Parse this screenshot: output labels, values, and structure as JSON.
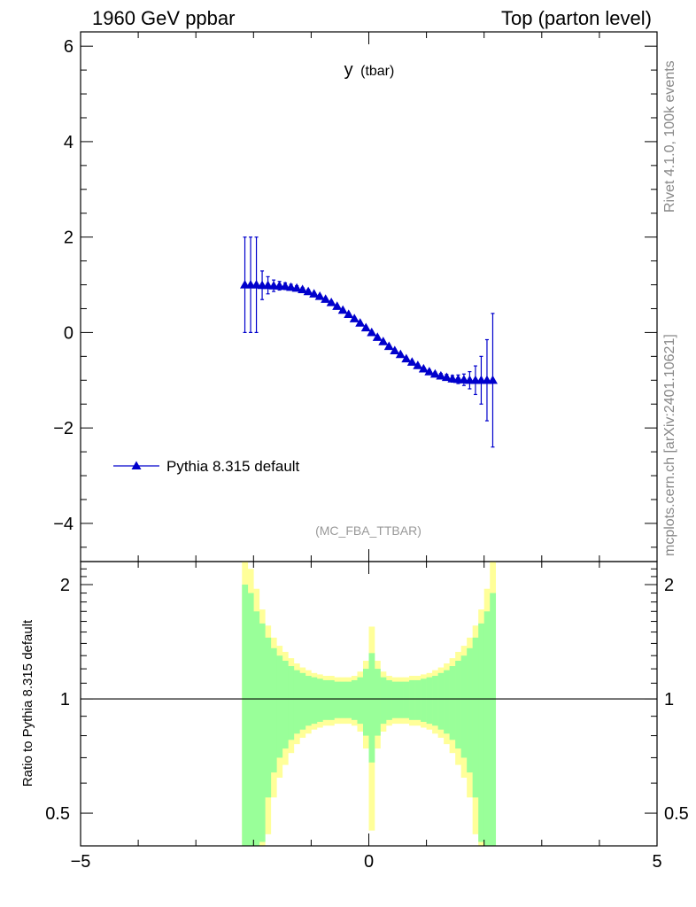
{
  "header": {
    "left": "1960 GeV ppbar",
    "right": "Top (parton level)"
  },
  "side_labels": {
    "rivet": "Rivet 4.1.0,  100k events",
    "mcplots": "mcplots.cern.ch [arXiv:2401.10621]"
  },
  "analysis_tag": "(MC_FBA_TTBAR)",
  "colors": {
    "series": "#0000cc",
    "band_stat": "#99ff99",
    "band_total": "#ffff99",
    "frame": "#000000",
    "side_text": "#888888"
  },
  "chart_data": [
    {
      "type": "scatter",
      "title_main": "y",
      "title_sub": "(tbar)",
      "xlim": [
        -5,
        5
      ],
      "ylim": [
        -4.8,
        6.3
      ],
      "x_ticks": [
        -5,
        0,
        5
      ],
      "x_tick_labels": [
        "−5",
        "0",
        "5"
      ],
      "y_ticks": [
        -4,
        -2,
        0,
        2,
        4,
        6
      ],
      "y_tick_labels": [
        "−4",
        "−2",
        "0",
        "2",
        "4",
        "6"
      ],
      "legend": {
        "label": "Pythia 8.315 default",
        "position": "bottom-left"
      },
      "series": [
        {
          "name": "Pythia 8.315 default",
          "marker": "triangle-up",
          "x": [
            -2.15,
            -2.05,
            -1.95,
            -1.85,
            -1.75,
            -1.65,
            -1.55,
            -1.45,
            -1.35,
            -1.25,
            -1.15,
            -1.05,
            -0.95,
            -0.85,
            -0.75,
            -0.65,
            -0.55,
            -0.45,
            -0.35,
            -0.25,
            -0.15,
            -0.05,
            0.05,
            0.15,
            0.25,
            0.35,
            0.45,
            0.55,
            0.65,
            0.75,
            0.85,
            0.95,
            1.05,
            1.15,
            1.25,
            1.35,
            1.45,
            1.55,
            1.65,
            1.75,
            1.85,
            1.95,
            2.05,
            2.15
          ],
          "y": [
            1.0,
            1.0,
            1.0,
            0.99,
            0.99,
            0.98,
            0.98,
            0.97,
            0.95,
            0.93,
            0.9,
            0.86,
            0.81,
            0.76,
            0.7,
            0.63,
            0.55,
            0.47,
            0.38,
            0.29,
            0.2,
            0.1,
            0.0,
            -0.1,
            -0.19,
            -0.29,
            -0.38,
            -0.46,
            -0.55,
            -0.62,
            -0.69,
            -0.76,
            -0.82,
            -0.87,
            -0.91,
            -0.94,
            -0.97,
            -0.98,
            -0.99,
            -1.0,
            -1.0,
            -1.0,
            -1.0,
            -1.0
          ],
          "err": [
            1.0,
            1.0,
            1.0,
            0.3,
            0.18,
            0.12,
            0.09,
            0.07,
            0.06,
            0.05,
            0.04,
            0.04,
            0.03,
            0.03,
            0.03,
            0.03,
            0.03,
            0.03,
            0.03,
            0.03,
            0.03,
            0.03,
            0.03,
            0.03,
            0.03,
            0.03,
            0.03,
            0.03,
            0.03,
            0.03,
            0.03,
            0.03,
            0.04,
            0.04,
            0.05,
            0.06,
            0.07,
            0.09,
            0.12,
            0.18,
            0.3,
            0.5,
            0.85,
            1.4
          ]
        }
      ]
    },
    {
      "type": "area",
      "ylabel": "Ratio to Pythia 8.315 default",
      "xlim": [
        -5,
        5
      ],
      "ylim": [
        0.41,
        2.3
      ],
      "yscale": "log",
      "x_ticks": [
        -5,
        0,
        5
      ],
      "x_tick_labels": [
        "−5",
        "0",
        "5"
      ],
      "y_ticks": [
        0.5,
        1,
        2
      ],
      "y_tick_labels": [
        "0.5",
        "1",
        "2"
      ],
      "reference_line": 1,
      "bands": {
        "x_edges": [
          -2.2,
          -2.1,
          -2.0,
          -1.9,
          -1.8,
          -1.7,
          -1.6,
          -1.5,
          -1.4,
          -1.3,
          -1.2,
          -1.1,
          -1.0,
          -0.9,
          -0.8,
          -0.7,
          -0.6,
          -0.5,
          -0.4,
          -0.3,
          -0.2,
          -0.1,
          0.0,
          0.1,
          0.2,
          0.3,
          0.4,
          0.5,
          0.6,
          0.7,
          0.8,
          0.9,
          1.0,
          1.1,
          1.2,
          1.3,
          1.4,
          1.5,
          1.6,
          1.7,
          1.8,
          1.9,
          2.0,
          2.1,
          2.2
        ],
        "stat_rel": [
          1.0,
          0.9,
          0.7,
          0.58,
          0.45,
          0.36,
          0.3,
          0.26,
          0.22,
          0.19,
          0.17,
          0.15,
          0.14,
          0.13,
          0.12,
          0.12,
          0.11,
          0.11,
          0.11,
          0.12,
          0.14,
          0.2,
          0.32,
          0.2,
          0.14,
          0.12,
          0.11,
          0.11,
          0.11,
          0.12,
          0.12,
          0.13,
          0.14,
          0.15,
          0.17,
          0.19,
          0.22,
          0.26,
          0.3,
          0.36,
          0.45,
          0.58,
          0.7,
          0.9
        ],
        "total_rel": [
          1.3,
          1.2,
          0.95,
          0.72,
          0.56,
          0.45,
          0.38,
          0.33,
          0.28,
          0.24,
          0.21,
          0.19,
          0.17,
          0.16,
          0.15,
          0.15,
          0.14,
          0.14,
          0.14,
          0.15,
          0.18,
          0.26,
          0.55,
          0.26,
          0.18,
          0.15,
          0.14,
          0.14,
          0.14,
          0.15,
          0.15,
          0.16,
          0.17,
          0.19,
          0.21,
          0.24,
          0.28,
          0.33,
          0.38,
          0.45,
          0.56,
          0.72,
          0.95,
          1.3
        ]
      }
    }
  ]
}
